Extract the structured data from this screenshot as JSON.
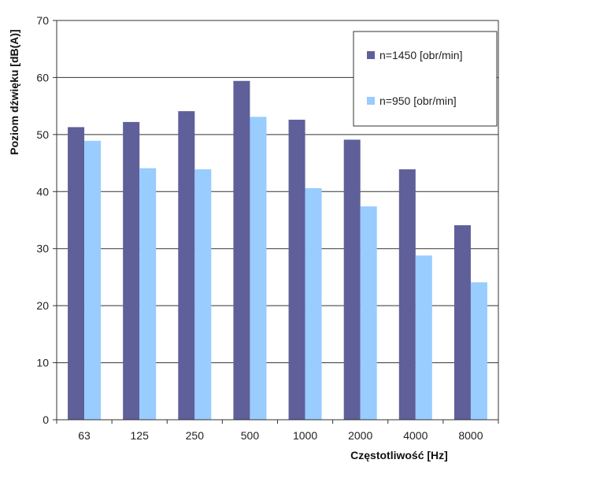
{
  "chart_data": {
    "type": "bar",
    "categories": [
      "63",
      "125",
      "250",
      "500",
      "1000",
      "2000",
      "4000",
      "8000"
    ],
    "series": [
      {
        "name": "n=1450 [obr/min]",
        "color": "#5f5f99",
        "values": [
          51.3,
          52.2,
          54.1,
          59.4,
          52.6,
          49.1,
          43.9,
          34.1
        ]
      },
      {
        "name": "n=950 [obr/min]",
        "color": "#99ccff",
        "values": [
          48.9,
          44.1,
          43.9,
          53.1,
          40.6,
          37.4,
          28.8,
          24.1
        ]
      }
    ],
    "title": "",
    "xlabel": "Częstotliwość [Hz]",
    "ylabel": "Poziom dźwięku [dB(A)]",
    "ylim": [
      0,
      70
    ],
    "yticks": [
      0,
      10,
      20,
      30,
      40,
      50,
      60,
      70
    ],
    "grid": true,
    "legend_position": "top-right"
  }
}
